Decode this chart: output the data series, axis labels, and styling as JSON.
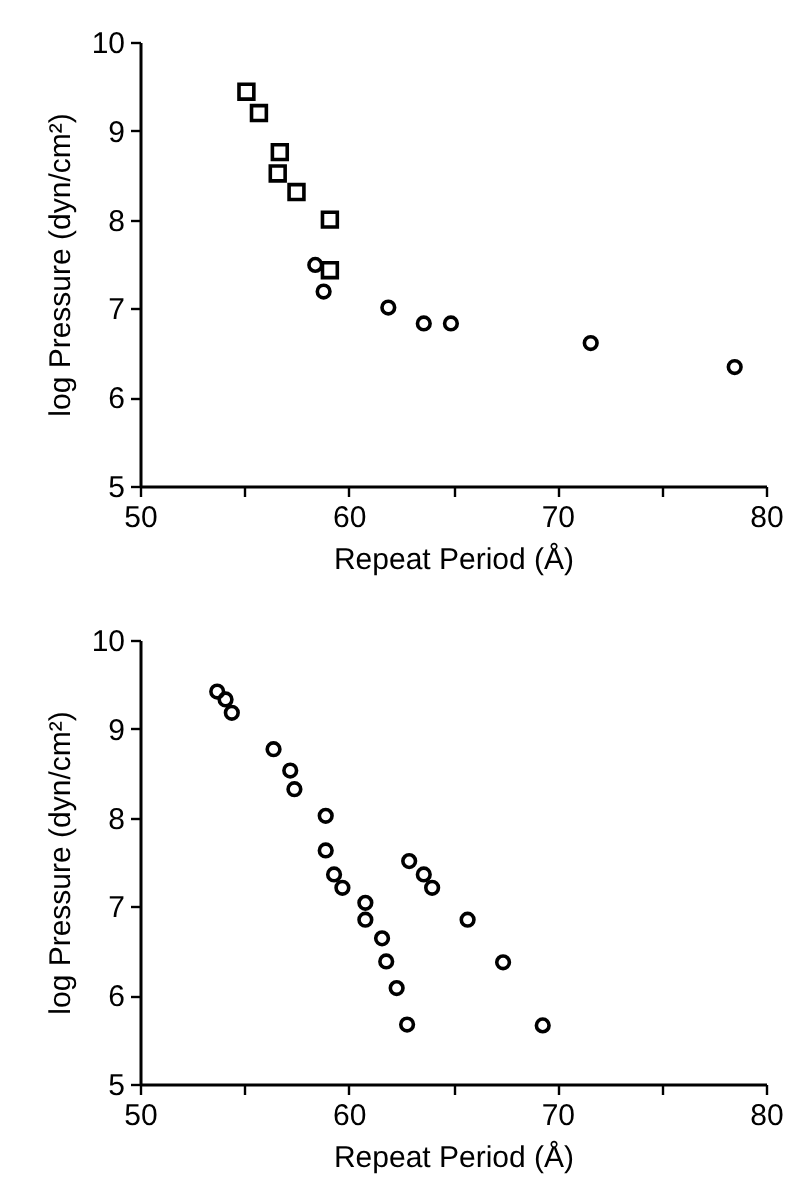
{
  "chart_data": [
    {
      "type": "scatter",
      "xlabel": "Repeat Period (Å)",
      "ylabel": "log Pressure (dyn/cm²)",
      "xlim": [
        50,
        80
      ],
      "ylim": [
        5,
        10
      ],
      "xticks": [
        50,
        {
          "value": 55,
          "label": null
        },
        60,
        {
          "value": 65,
          "label": null
        },
        70,
        {
          "value": 75,
          "label": null
        },
        80
      ],
      "yticks": [
        5,
        6,
        7,
        8,
        9,
        10
      ],
      "grid": false,
      "series": [
        {
          "color": "#000000",
          "marker": "square",
          "x": [
            55.1,
            55.7,
            56.7,
            56.6,
            57.5,
            59.1,
            59.1
          ],
          "values": [
            9.44,
            9.2,
            8.76,
            8.52,
            8.31,
            8.0,
            7.43
          ]
        },
        {
          "color": "#000000",
          "marker": "circle",
          "x": [
            58.4,
            58.8,
            61.9,
            63.6,
            64.9,
            71.6,
            78.5
          ],
          "values": [
            7.49,
            7.19,
            7.01,
            6.83,
            6.83,
            6.61,
            6.34
          ]
        }
      ]
    },
    {
      "type": "scatter",
      "xlabel": "Repeat Period (Å)",
      "ylabel": "log Pressure (dyn/cm²)",
      "xlim": [
        50,
        80
      ],
      "ylim": [
        5,
        10
      ],
      "xticks": [
        50,
        {
          "value": 55,
          "label": null
        },
        60,
        {
          "value": 65,
          "label": null
        },
        70,
        {
          "value": 75,
          "label": null
        },
        80
      ],
      "yticks": [
        5,
        6,
        7,
        8,
        9,
        10
      ],
      "grid": false,
      "series": [
        {
          "color": "#000000",
          "marker": "circle",
          "x": [
            53.7,
            54.1,
            54.4,
            56.4,
            57.2,
            57.4,
            58.9,
            58.9,
            59.3,
            59.7,
            60.8,
            60.8,
            61.6,
            61.8,
            62.3,
            62.8
          ],
          "values": [
            9.42,
            9.33,
            9.18,
            8.77,
            8.53,
            8.32,
            8.02,
            7.63,
            7.36,
            7.21,
            7.04,
            6.85,
            6.64,
            6.38,
            6.08,
            5.67
          ]
        },
        {
          "color": "#000000",
          "marker": "circle",
          "x": [
            62.9,
            63.6,
            64.0,
            65.7,
            67.4,
            69.3
          ],
          "values": [
            7.51,
            7.36,
            7.21,
            6.85,
            6.37,
            5.66
          ]
        }
      ]
    }
  ]
}
